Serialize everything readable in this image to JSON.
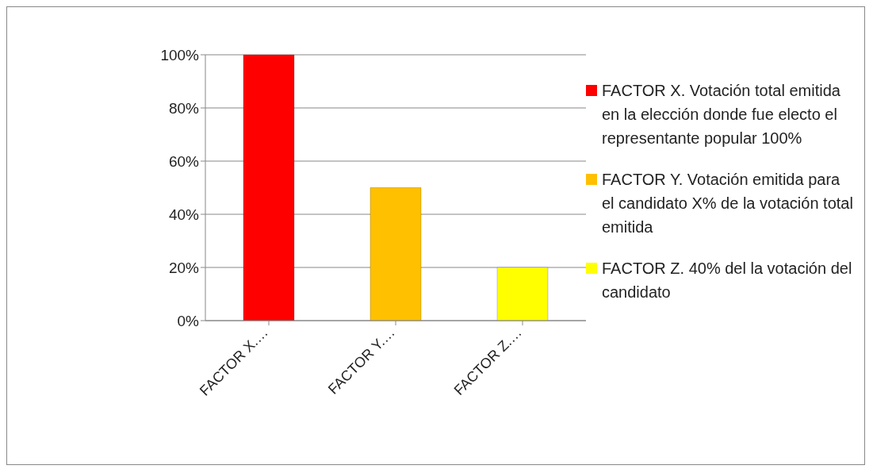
{
  "chart_data": {
    "type": "bar",
    "categories": [
      "FACTOR X.…",
      "FACTOR Y.…",
      "FACTOR Z.…"
    ],
    "series": [
      {
        "name": "FACTOR X. Votación total emitida en la elección donde fue electo el representante popular 100%",
        "color": "#ff0000",
        "values": [
          100,
          null,
          null
        ]
      },
      {
        "name": "FACTOR Y. Votación emitida para el candidato X% de la votación total emitida",
        "color": "#ffc000",
        "values": [
          null,
          50,
          null
        ]
      },
      {
        "name": "FACTOR Z. 40% del la votación del candidato",
        "color": "#ffff00",
        "values": [
          null,
          null,
          20
        ]
      }
    ],
    "stacked": true,
    "ylim": [
      0,
      100
    ],
    "yticks": [
      {
        "value": 0,
        "label": "0%"
      },
      {
        "value": 20,
        "label": "20%"
      },
      {
        "value": 40,
        "label": "40%"
      },
      {
        "value": 60,
        "label": "60%"
      },
      {
        "value": 80,
        "label": "80%"
      },
      {
        "value": 100,
        "label": "100%"
      }
    ],
    "grid": "y",
    "legend": "right"
  }
}
